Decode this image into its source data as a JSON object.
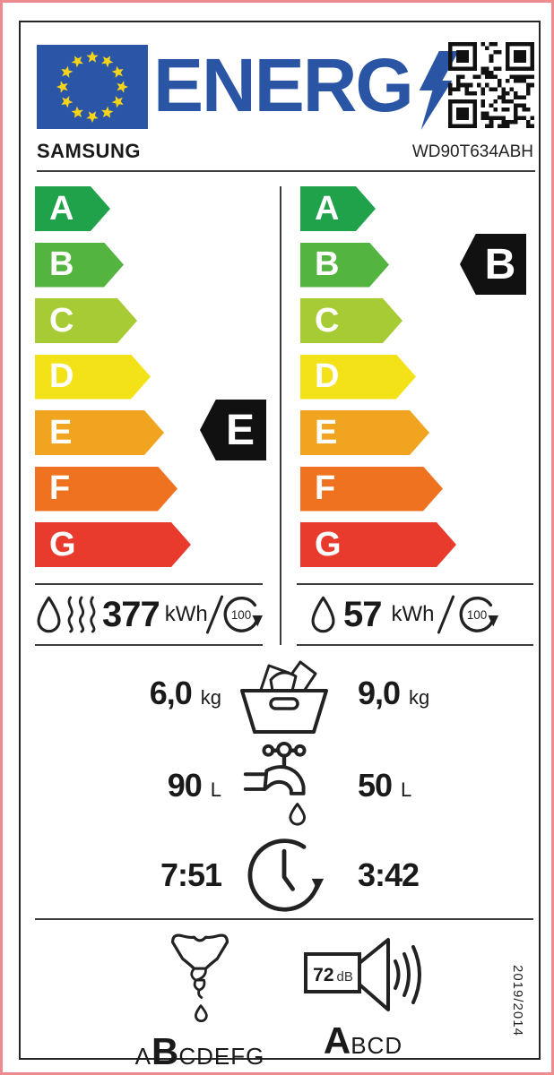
{
  "header": {
    "brand": "SAMSUNG",
    "model": "WD90T634ABH",
    "logo_text": "ENERG"
  },
  "scale": {
    "letters": [
      "A",
      "B",
      "C",
      "D",
      "E",
      "F",
      "G"
    ],
    "colors": [
      "#1fa24a",
      "#53b43f",
      "#a6cb34",
      "#f4e219",
      "#f0a41f",
      "#ef7221",
      "#e93a2e"
    ],
    "badge_bg": "#111111",
    "left_rating": "E",
    "right_rating": "B"
  },
  "consumption": {
    "left": {
      "value": "377",
      "unit": "kWh",
      "cycles": "100"
    },
    "right": {
      "value": "57",
      "unit": "kWh",
      "cycles": "100"
    }
  },
  "capacity": {
    "left": {
      "value": "6,0",
      "unit": "kg"
    },
    "right": {
      "value": "9,0",
      "unit": "kg"
    }
  },
  "water": {
    "left": {
      "value": "90",
      "unit": "L"
    },
    "right": {
      "value": "50",
      "unit": "L"
    }
  },
  "duration": {
    "left": "7:51",
    "right": "3:42"
  },
  "spin_class": {
    "before": "A",
    "grade": "B",
    "after": "CDEFG"
  },
  "noise": {
    "value": "72",
    "unit": "dB",
    "grade": "A",
    "after": "BCD"
  },
  "regulation": "2019/2014",
  "colors": {
    "logo_blue": "#2a55a4",
    "flag_blue": "#2b56a7",
    "star_yellow": "#f7d417",
    "outer_border_pink": "#ef8b8e",
    "badge_black": "#111111"
  },
  "icons": {
    "eu-flag-icon": "circle of 12 stars",
    "lightning-bolt-icon": "energy Y bolt",
    "qr-code-icon": "QR code",
    "water-drop-icon": "washing cycle drop",
    "steam-icon": "drying steam waves",
    "cycle-100-icon": "per 100 cycles circular arrow",
    "laundry-basket-icon": "rated capacity basket",
    "tap-icon": "water consumption tap",
    "clock-icon": "programme duration clock",
    "wrung-shirt-icon": "spin-drying efficiency class",
    "speaker-icon": "airborne acoustical noise"
  }
}
